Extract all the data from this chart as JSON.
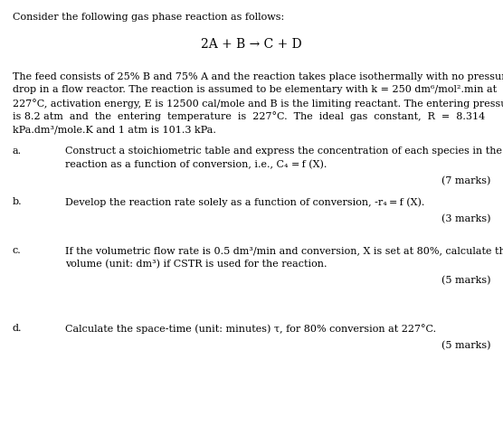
{
  "title": "Consider the following gas phase reaction as follows:",
  "reaction": "2A + B → C + D",
  "para_lines": [
    "The feed consists of 25% B and 75% A and the reaction takes place isothermally with no pressure",
    "drop in a flow reactor. The reaction is assumed to be elementary with k = 250 dm⁶/mol².min at",
    "227°C, activation energy, E is 12500 cal/mole and B is the limiting reactant. The entering pressure",
    "is 8.2 atm  and  the  entering  temperature  is  227°C.  The  ideal  gas  constant,  R  =  8.314",
    "kPa.dm³/mole.K and 1 atm is 101.3 kPa."
  ],
  "parts": [
    {
      "label": "a.",
      "line1": "Construct a stoichiometric table and express the concentration of each species in the",
      "line2": "reaction as a function of conversion, i.e., C₄ = f (X).",
      "marks": "(7 marks)",
      "two_lines": true
    },
    {
      "label": "b.",
      "line1": "Develop the reaction rate solely as a function of conversion, -r₄ = f (X).",
      "line2": "",
      "marks": "(3 marks)",
      "two_lines": false
    },
    {
      "label": "c.",
      "line1": "If the volumetric flow rate is 0.5 dm³/min and conversion, X is set at 80%, calculate the",
      "line2": "volume (unit: dm³) if CSTR is used for the reaction.",
      "marks": "(5 marks)",
      "two_lines": true
    },
    {
      "label": "d.",
      "line1": "Calculate the space-time (unit: minutes) τ, for 80% conversion at 227°C.",
      "line2": "",
      "marks": "(5 marks)",
      "two_lines": false
    }
  ],
  "background_color": "#ffffff",
  "text_color": "#000000",
  "fontsize": 8.0,
  "fontsize_reaction": 10.0
}
